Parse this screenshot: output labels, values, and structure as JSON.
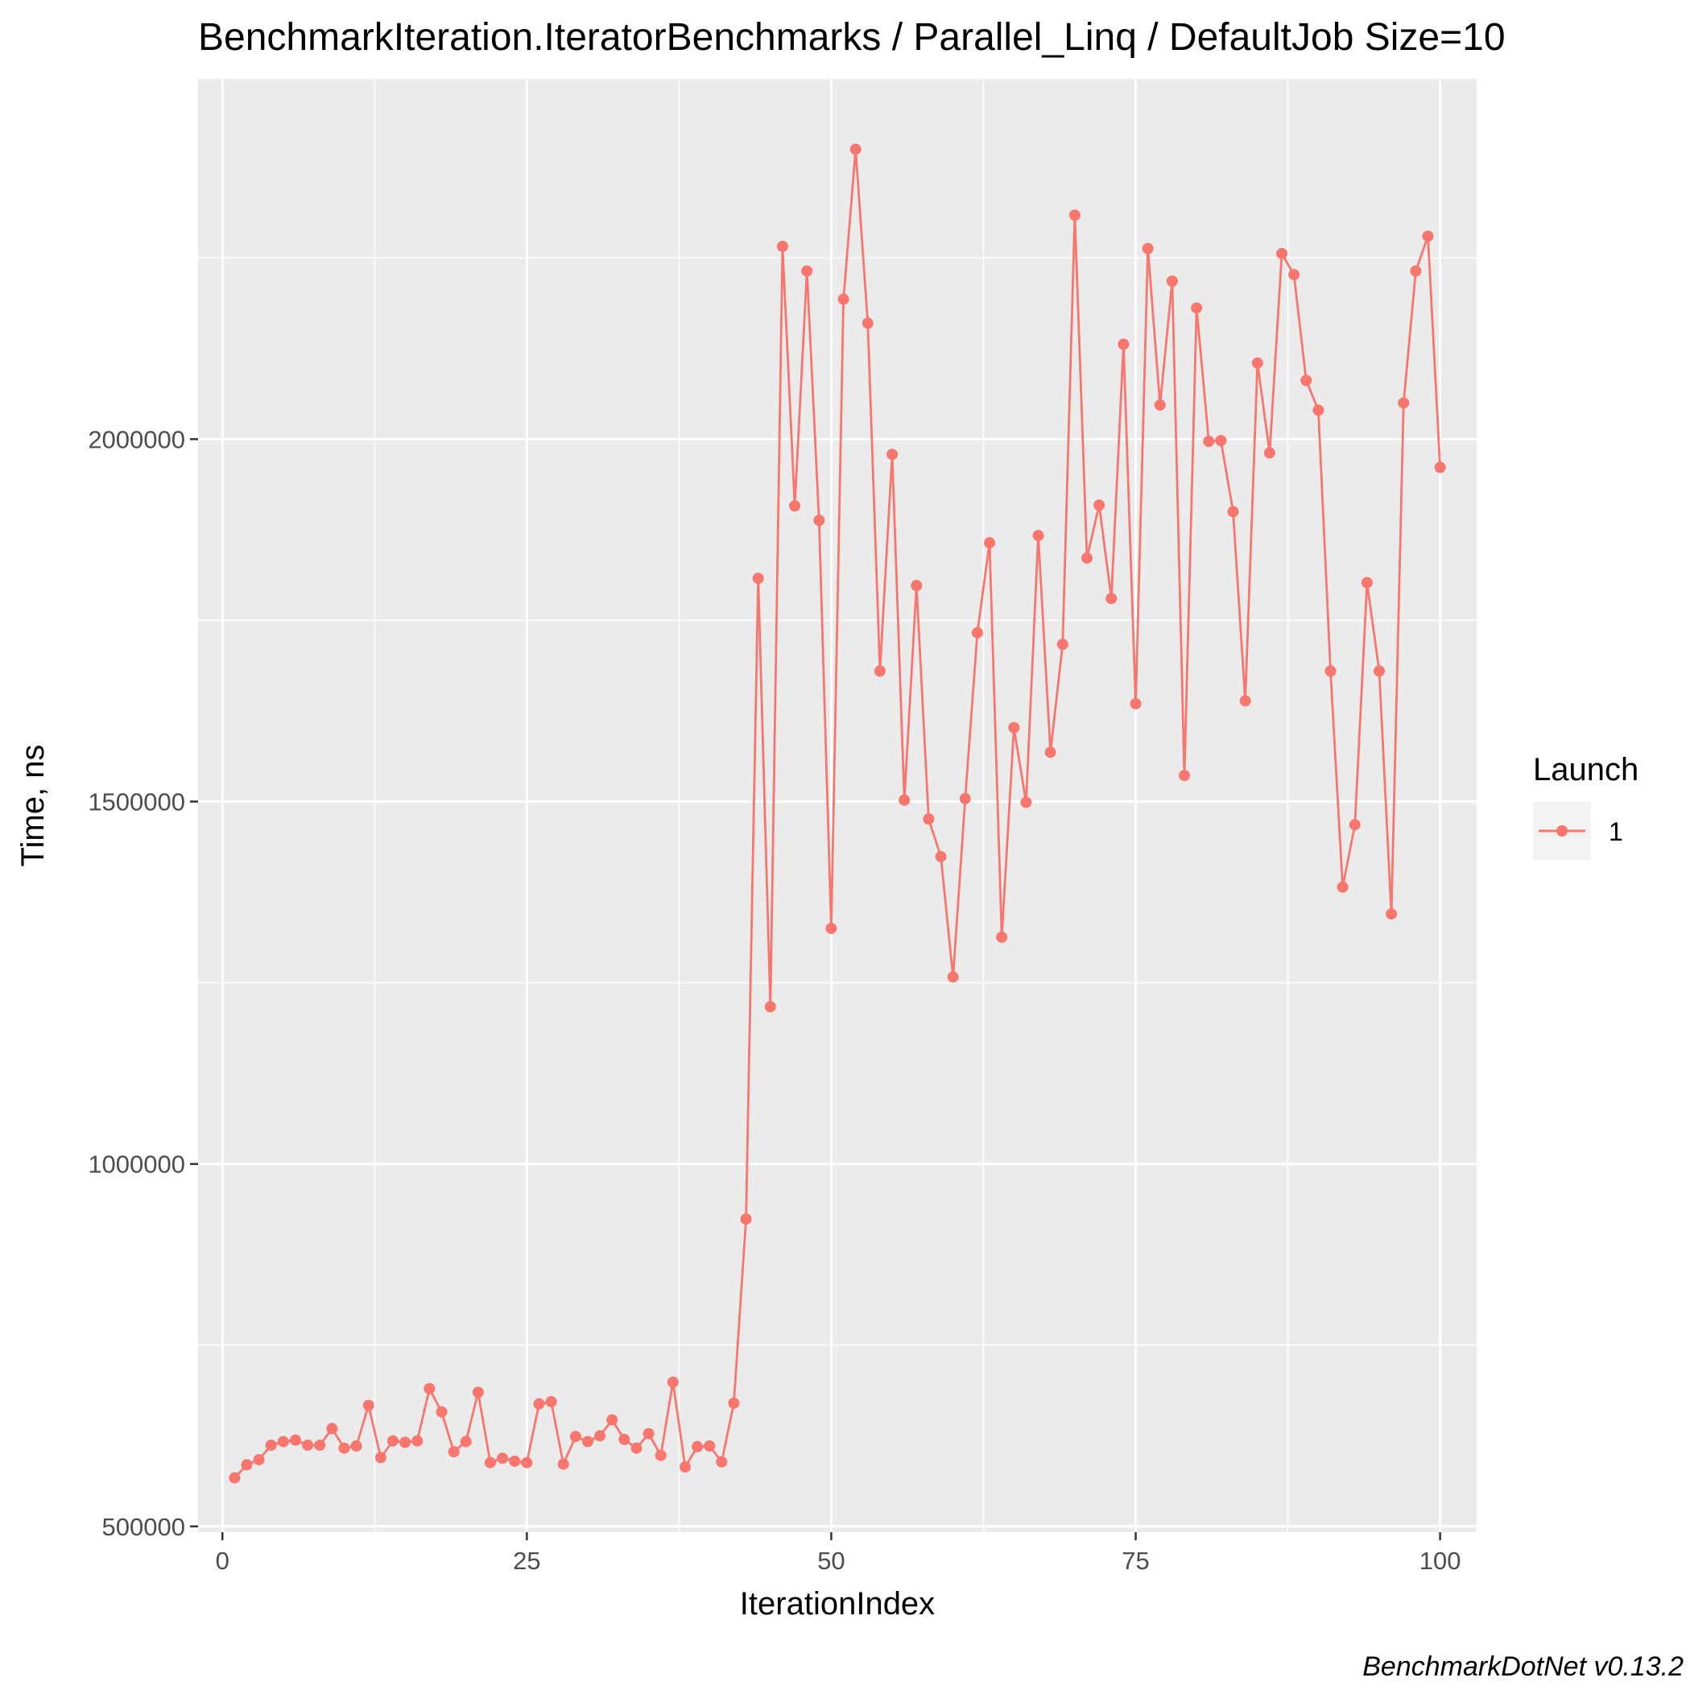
{
  "chart_data": {
    "type": "line",
    "title": "BenchmarkIteration.IteratorBenchmarks / Parallel_Linq / DefaultJob Size=10",
    "xlabel": "IterationIndex",
    "ylabel": "Time, ns",
    "xlim": [
      -2,
      103
    ],
    "ylim": [
      492000,
      2497000
    ],
    "x_ticks": [
      0,
      25,
      50,
      75,
      100
    ],
    "y_ticks": [
      500000,
      1000000,
      1500000,
      2000000
    ],
    "y_minor": [
      750000,
      1250000,
      1750000,
      2250000
    ],
    "grid": true,
    "legend": {
      "title": "Launch",
      "position": "right"
    },
    "caption": "BenchmarkDotNet v0.13.2",
    "series": [
      {
        "name": "1",
        "color": "#F8766D",
        "x": [
          1,
          2,
          3,
          4,
          5,
          6,
          7,
          8,
          9,
          10,
          11,
          12,
          13,
          14,
          15,
          16,
          17,
          18,
          19,
          20,
          21,
          22,
          23,
          24,
          25,
          26,
          27,
          28,
          29,
          30,
          31,
          32,
          33,
          34,
          35,
          36,
          37,
          38,
          39,
          40,
          41,
          42,
          43,
          44,
          45,
          46,
          47,
          48,
          49,
          50,
          51,
          52,
          53,
          54,
          55,
          56,
          57,
          58,
          59,
          60,
          61,
          62,
          63,
          64,
          65,
          66,
          67,
          68,
          69,
          70,
          71,
          72,
          73,
          74,
          75,
          76,
          77,
          78,
          79,
          80,
          81,
          82,
          83,
          84,
          85,
          86,
          87,
          88,
          89,
          90,
          91,
          92,
          93,
          94,
          95,
          96,
          97,
          98,
          99,
          100
        ],
        "values": [
          567000,
          585000,
          592000,
          612000,
          617000,
          619000,
          612000,
          612000,
          635000,
          608000,
          611000,
          667000,
          595000,
          618000,
          616000,
          618000,
          690000,
          658000,
          603000,
          617000,
          685000,
          588000,
          594000,
          590000,
          588000,
          669000,
          672000,
          586000,
          624000,
          617000,
          625000,
          647000,
          620000,
          608000,
          628000,
          598000,
          699000,
          582000,
          610000,
          611000,
          589000,
          670000,
          924000,
          1808000,
          1217000,
          2266000,
          1908000,
          2232000,
          1888000,
          1325000,
          2193000,
          2400000,
          2160000,
          1680000,
          1979000,
          1502000,
          1798000,
          1476000,
          1424000,
          1258000,
          1504000,
          1733000,
          1857000,
          1313000,
          1602000,
          1499000,
          1867000,
          1568000,
          1717000,
          2309000,
          1836000,
          1909000,
          1780000,
          2131000,
          1635000,
          2263000,
          2047000,
          2218000,
          1536000,
          2181000,
          1997000,
          1998000,
          1900000,
          1639000,
          2105000,
          1981000,
          2256000,
          2227000,
          2081000,
          2040000,
          1680000,
          1382000,
          1468000,
          1802000,
          1680000,
          1345000,
          2050000,
          2232000,
          2280000,
          1961000
        ]
      }
    ]
  }
}
